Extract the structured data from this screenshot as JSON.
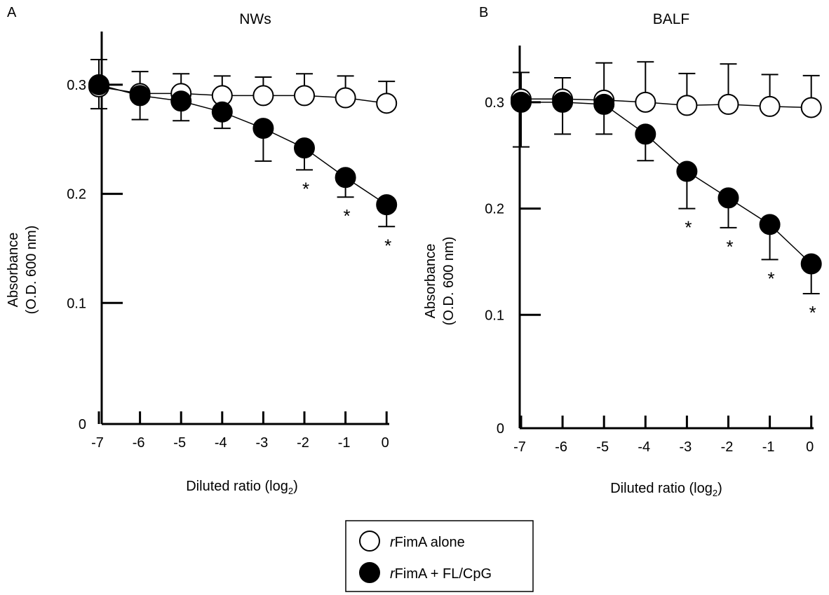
{
  "chart_data": [
    {
      "type": "line",
      "panel_label": "A",
      "title": "NWs",
      "xlabel": "Diluted ratio (log",
      "xlabel_sub": "2",
      "xlabel_end": ")",
      "ylabel_line1": "Absorbance",
      "ylabel_line2": "(O.D. 600 nm)",
      "x": [
        -7,
        -6,
        -5,
        -4,
        -3,
        -2,
        -1,
        0
      ],
      "x_tick_labels": [
        "-7",
        "-6",
        "-5",
        "-4",
        "-3",
        "-2",
        "-1",
        "0"
      ],
      "ylim": [
        0,
        0.35
      ],
      "y_ticks": [
        0,
        0.1,
        0.2,
        0.3
      ],
      "y_tick_labels": [
        "0",
        "0.1",
        "0.2",
        "0.3"
      ],
      "series": [
        {
          "name": "rFimA alone",
          "marker": "open",
          "values": [
            0.298,
            0.292,
            0.292,
            0.29,
            0.29,
            0.29,
            0.288,
            0.283
          ],
          "errors": [
            0.025,
            0.02,
            0.018,
            0.018,
            0.017,
            0.02,
            0.02,
            0.02
          ],
          "error_direction": "up"
        },
        {
          "name": "rFimA + FL/CpG",
          "marker": "filled",
          "values": [
            0.3,
            0.29,
            0.285,
            0.275,
            0.26,
            0.242,
            0.215,
            0.19
          ],
          "errors": [
            0.022,
            0.022,
            0.018,
            0.015,
            0.03,
            0.02,
            0.018,
            0.02
          ],
          "error_direction": "down",
          "significance": [
            "",
            "",
            "",
            "",
            "",
            "*",
            "*",
            "*"
          ]
        }
      ]
    },
    {
      "type": "line",
      "panel_label": "B",
      "title": "BALF",
      "xlabel": "Diluted ratio (log",
      "xlabel_sub": "2",
      "xlabel_end": ")",
      "ylabel_line1": "Absorbance",
      "ylabel_line2": "(O.D. 600 nm)",
      "x": [
        -7,
        -6,
        -5,
        -4,
        -3,
        -2,
        -1,
        0
      ],
      "x_tick_labels": [
        "-7",
        "-6",
        "-5",
        "-4",
        "-3",
        "-2",
        "-1",
        "0"
      ],
      "ylim": [
        0,
        0.35
      ],
      "y_ticks": [
        0,
        0.1,
        0.2,
        0.3
      ],
      "y_tick_labels": [
        "0",
        "0.1",
        "0.2",
        "0.3"
      ],
      "series": [
        {
          "name": "rFimA alone",
          "marker": "open",
          "values": [
            0.303,
            0.303,
            0.302,
            0.3,
            0.297,
            0.298,
            0.296,
            0.295
          ],
          "errors": [
            0.025,
            0.02,
            0.035,
            0.038,
            0.03,
            0.038,
            0.03,
            0.03
          ],
          "error_direction": "up"
        },
        {
          "name": "rFimA + FL/CpG",
          "marker": "filled",
          "values": [
            0.3,
            0.3,
            0.298,
            0.27,
            0.235,
            0.21,
            0.185,
            0.148
          ],
          "errors": [
            0.042,
            0.03,
            0.028,
            0.025,
            0.035,
            0.028,
            0.033,
            0.028
          ],
          "error_direction": "down",
          "significance": [
            "",
            "",
            "",
            "",
            "*",
            "*",
            "*",
            "*"
          ]
        }
      ]
    }
  ],
  "legend": {
    "items": [
      {
        "prefix": "r",
        "text": "FimA alone",
        "marker": "open"
      },
      {
        "prefix": "r",
        "text": "FimA + FL/CpG",
        "marker": "filled"
      }
    ]
  }
}
